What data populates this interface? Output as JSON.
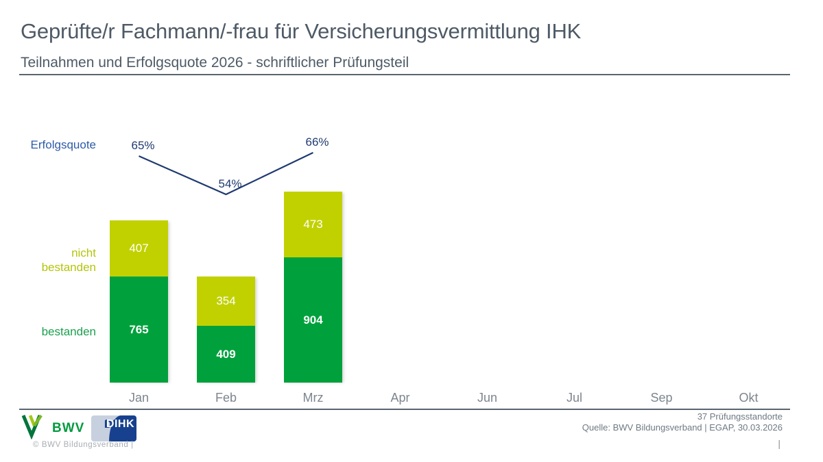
{
  "header": {
    "title": "Geprüfte/r Fachmann/-frau für Versicherungsvermittlung IHK",
    "subtitle": "Teilnahmen und Erfolgsquote 2026 - schriftlicher Prüfungsteil"
  },
  "chart_data": {
    "type": "bar",
    "subtype": "stacked-columns-with-line-overlay",
    "title": "Teilnahmen und Erfolgsquote 2026 - schriftlicher Prüfungsteil",
    "categories": [
      "Jan",
      "Feb",
      "Mrz",
      "Apr",
      "Jun",
      "Jul",
      "Sep",
      "Okt"
    ],
    "series": [
      {
        "name": "bestanden",
        "type": "bar",
        "color": "#00a13c",
        "values": [
          765,
          409,
          904,
          null,
          null,
          null,
          null,
          null
        ]
      },
      {
        "name": "nicht bestanden",
        "type": "bar",
        "color": "#c1d100",
        "values": [
          407,
          354,
          473,
          null,
          null,
          null,
          null,
          null
        ]
      },
      {
        "name": "Erfolgsquote",
        "type": "line",
        "color": "#1f3a70",
        "unit": "%",
        "values": [
          65,
          54,
          66,
          null,
          null,
          null,
          null,
          null
        ]
      }
    ],
    "erfolgsquote_labels": [
      "65%",
      "54%",
      "66%"
    ],
    "legend": {
      "line_label": "Erfolgsquote",
      "stack_top_label": "nicht bestanden",
      "stack_bottom_label": "bestanden",
      "position": "left"
    },
    "grid": false,
    "value_labels": "inside-center, white"
  },
  "footer": {
    "bwv_logo_text": "BWV",
    "dihk_logo_text": "DIHK",
    "copyright": "©  BWV Bildungsverband  |",
    "right_line1": "37 Prüfungsstandorte",
    "right_line2": "Quelle: BWV Bildungsverband | EGAP, 30.03.2026",
    "page_separator": "|"
  },
  "colors": {
    "bar_green": "#00a13c",
    "bar_yellow_green": "#c1d100",
    "line_navy": "#1f3a70",
    "erfolgsquote_blue": "#2e5ba6",
    "title_gray": "#4e5a66",
    "month_gray": "#7d858d"
  }
}
